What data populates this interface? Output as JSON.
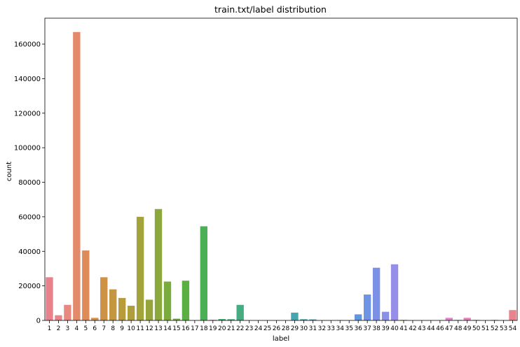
{
  "chart_data": {
    "type": "bar",
    "title": "train.txt/label distribution",
    "xlabel": "label",
    "ylabel": "count",
    "ylim": [
      0,
      175000
    ],
    "yticks": [
      0,
      20000,
      40000,
      60000,
      80000,
      100000,
      120000,
      140000,
      160000
    ],
    "grid": false,
    "categories": [
      "1",
      "2",
      "3",
      "4",
      "5",
      "6",
      "7",
      "8",
      "9",
      "10",
      "11",
      "12",
      "13",
      "14",
      "15",
      "16",
      "17",
      "18",
      "19",
      "20",
      "21",
      "22",
      "23",
      "24",
      "25",
      "26",
      "28",
      "29",
      "30",
      "31",
      "32",
      "33",
      "34",
      "35",
      "36",
      "37",
      "38",
      "39",
      "40",
      "41",
      "42",
      "43",
      "44",
      "46",
      "47",
      "48",
      "49",
      "50",
      "51",
      "52",
      "53",
      "54"
    ],
    "values": [
      25000,
      3000,
      9000,
      167000,
      40500,
      1500,
      25000,
      18000,
      13000,
      8500,
      60000,
      12000,
      64500,
      22500,
      1000,
      23000,
      0,
      54500,
      300,
      800,
      700,
      9000,
      0,
      0,
      0,
      0,
      0,
      4500,
      700,
      600,
      0,
      0,
      200,
      0,
      3500,
      15000,
      30500,
      5000,
      32500,
      300,
      0,
      0,
      0,
      0,
      1500,
      300,
      1500,
      300,
      0,
      300,
      0,
      6000
    ],
    "colors": [
      "#e8818c",
      "#e8858a",
      "#e78981",
      "#e28a6a",
      "#dd8b58",
      "#d6904e",
      "#cd9245",
      "#c4963f",
      "#b99b3c",
      "#af9f3a",
      "#a2a33b",
      "#96a539",
      "#8aa83b",
      "#7aab3c",
      "#6dac3e",
      "#5aaf41",
      "#4daf47",
      "#4aaf55",
      "#48af63",
      "#47ae6c",
      "#46ad76",
      "#46ac81",
      "#46ab8a",
      "#46aa91",
      "#45a999",
      "#45a8a0",
      "#44a7a8",
      "#44a6b0",
      "#44a4b6",
      "#45a2be",
      "#46a0c4",
      "#489ecb",
      "#4c9cd3",
      "#559ad9",
      "#6097df",
      "#6e94e4",
      "#7c91e6",
      "#8990e8",
      "#978ee7",
      "#a48be5",
      "#b08ae3",
      "#bb88e0",
      "#c686dd",
      "#d184d8",
      "#db82d1",
      "#e281c7",
      "#e680bd",
      "#e87fb2",
      "#ea7fa7",
      "#ec809c",
      "#ec8194",
      "#e9848d"
    ]
  }
}
